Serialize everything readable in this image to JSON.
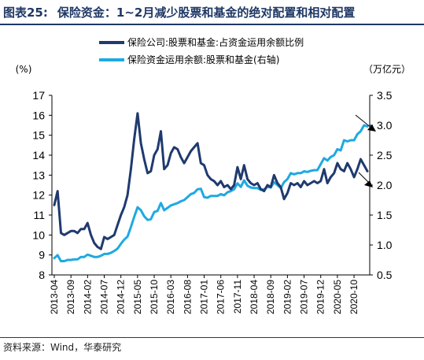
{
  "figure": {
    "label": "图表25:",
    "title": "保险资金：1~2月减少股票和基金的绝对配置和相对配置",
    "source": "资料来源：Wind，华泰研究"
  },
  "chart_data": {
    "type": "line",
    "left_axis": {
      "unit": "(%)",
      "min": 8,
      "max": 17,
      "ticks": [
        8,
        9,
        10,
        11,
        12,
        13,
        14,
        15,
        16,
        17
      ]
    },
    "right_axis": {
      "unit": "（万亿元）",
      "min": 0.5,
      "max": 3.5,
      "ticks": [
        "0.5",
        "1.0",
        "1.5",
        "2.0",
        "2.5",
        "3.0",
        "3.5"
      ]
    },
    "x_tick_labels": [
      "2013-04",
      "2013-09",
      "2014-02",
      "2014-07",
      "2014-12",
      "2015-05",
      "2015-10",
      "2016-03",
      "2016-08",
      "2017-01",
      "2017-06",
      "2017-11",
      "2018-04",
      "2018-09",
      "2019-02",
      "2019-07",
      "2019-12",
      "2020-05",
      "2020-10"
    ],
    "x_range": [
      "2013-04",
      "2021-02"
    ],
    "legend_position": "top-center",
    "series": [
      {
        "name": "保险公司:股票和基金:占资金运用余额比例",
        "axis": "left",
        "color": "#1f3a6e",
        "points": [
          [
            "2013-04",
            11.5
          ],
          [
            "2013-05",
            12.2
          ],
          [
            "2013-06",
            10.1
          ],
          [
            "2013-07",
            10.0
          ],
          [
            "2013-08",
            10.1
          ],
          [
            "2013-09",
            10.2
          ],
          [
            "2013-10",
            10.2
          ],
          [
            "2013-11",
            10.1
          ],
          [
            "2013-12",
            10.3
          ],
          [
            "2014-01",
            10.3
          ],
          [
            "2014-02",
            10.6
          ],
          [
            "2014-03",
            10.0
          ],
          [
            "2014-04",
            9.6
          ],
          [
            "2014-05",
            9.4
          ],
          [
            "2014-06",
            9.3
          ],
          [
            "2014-07",
            9.9
          ],
          [
            "2014-08",
            9.8
          ],
          [
            "2014-09",
            9.9
          ],
          [
            "2014-10",
            10.0
          ],
          [
            "2014-11",
            10.5
          ],
          [
            "2014-12",
            11.0
          ],
          [
            "2015-01",
            11.4
          ],
          [
            "2015-02",
            12.0
          ],
          [
            "2015-03",
            13.3
          ],
          [
            "2015-04",
            14.8
          ],
          [
            "2015-05",
            16.1
          ],
          [
            "2015-06",
            14.6
          ],
          [
            "2015-07",
            13.8
          ],
          [
            "2015-08",
            13.1
          ],
          [
            "2015-09",
            13.2
          ],
          [
            "2015-10",
            14.0
          ],
          [
            "2015-11",
            14.3
          ],
          [
            "2015-12",
            15.2
          ],
          [
            "2016-01",
            13.3
          ],
          [
            "2016-02",
            13.5
          ],
          [
            "2016-03",
            14.1
          ],
          [
            "2016-04",
            14.4
          ],
          [
            "2016-05",
            14.3
          ],
          [
            "2016-06",
            13.9
          ],
          [
            "2016-07",
            13.6
          ],
          [
            "2016-08",
            13.9
          ],
          [
            "2016-09",
            14.2
          ],
          [
            "2016-10",
            14.4
          ],
          [
            "2016-11",
            14.6
          ],
          [
            "2016-12",
            13.6
          ],
          [
            "2017-01",
            13.5
          ],
          [
            "2017-02",
            13.0
          ],
          [
            "2017-03",
            12.8
          ],
          [
            "2017-04",
            12.7
          ],
          [
            "2017-05",
            12.5
          ],
          [
            "2017-06",
            12.7
          ],
          [
            "2017-07",
            12.4
          ],
          [
            "2017-08",
            12.5
          ],
          [
            "2017-09",
            12.3
          ],
          [
            "2017-10",
            12.5
          ],
          [
            "2017-11",
            13.4
          ],
          [
            "2017-12",
            12.8
          ],
          [
            "2018-01",
            13.5
          ],
          [
            "2018-02",
            12.8
          ],
          [
            "2018-03",
            12.6
          ],
          [
            "2018-04",
            12.5
          ],
          [
            "2018-05",
            12.6
          ],
          [
            "2018-06",
            12.3
          ],
          [
            "2018-07",
            12.2
          ],
          [
            "2018-08",
            12.5
          ],
          [
            "2018-09",
            12.4
          ],
          [
            "2018-10",
            13.0
          ],
          [
            "2018-11",
            12.6
          ],
          [
            "2018-12",
            12.4
          ],
          [
            "2019-01",
            11.8
          ],
          [
            "2019-02",
            12.1
          ],
          [
            "2019-03",
            12.6
          ],
          [
            "2019-04",
            12.5
          ],
          [
            "2019-05",
            12.6
          ],
          [
            "2019-06",
            12.4
          ],
          [
            "2019-07",
            12.7
          ],
          [
            "2019-08",
            12.5
          ],
          [
            "2019-09",
            12.6
          ],
          [
            "2019-10",
            12.7
          ],
          [
            "2019-11",
            12.6
          ],
          [
            "2019-12",
            12.7
          ],
          [
            "2020-01",
            13.3
          ],
          [
            "2020-02",
            12.6
          ],
          [
            "2020-03",
            12.9
          ],
          [
            "2020-04",
            13.1
          ],
          [
            "2020-05",
            13.6
          ],
          [
            "2020-06",
            13.3
          ],
          [
            "2020-07",
            13.2
          ],
          [
            "2020-08",
            13.6
          ],
          [
            "2020-09",
            13.3
          ],
          [
            "2020-10",
            12.9
          ],
          [
            "2020-11",
            13.3
          ],
          [
            "2020-12",
            13.8
          ],
          [
            "2021-01",
            13.5
          ],
          [
            "2021-02",
            13.2
          ]
        ]
      },
      {
        "name": "保险资金运用余额:股票和基金(右轴)",
        "axis": "right",
        "color": "#1fa9e1",
        "points": [
          [
            "2013-04",
            0.78
          ],
          [
            "2013-05",
            0.83
          ],
          [
            "2013-06",
            0.73
          ],
          [
            "2013-07",
            0.73
          ],
          [
            "2013-08",
            0.75
          ],
          [
            "2013-09",
            0.75
          ],
          [
            "2013-10",
            0.76
          ],
          [
            "2013-11",
            0.76
          ],
          [
            "2013-12",
            0.8
          ],
          [
            "2014-01",
            0.8
          ],
          [
            "2014-02",
            0.84
          ],
          [
            "2014-03",
            0.82
          ],
          [
            "2014-04",
            0.8
          ],
          [
            "2014-05",
            0.8
          ],
          [
            "2014-06",
            0.82
          ],
          [
            "2014-07",
            0.85
          ],
          [
            "2014-08",
            0.85
          ],
          [
            "2014-09",
            0.87
          ],
          [
            "2014-10",
            0.9
          ],
          [
            "2014-11",
            0.94
          ],
          [
            "2014-12",
            1.02
          ],
          [
            "2015-01",
            1.09
          ],
          [
            "2015-02",
            1.14
          ],
          [
            "2015-03",
            1.3
          ],
          [
            "2015-04",
            1.47
          ],
          [
            "2015-05",
            1.63
          ],
          [
            "2015-06",
            1.58
          ],
          [
            "2015-07",
            1.48
          ],
          [
            "2015-08",
            1.42
          ],
          [
            "2015-09",
            1.43
          ],
          [
            "2015-10",
            1.55
          ],
          [
            "2015-11",
            1.57
          ],
          [
            "2015-12",
            1.7
          ],
          [
            "2016-01",
            1.58
          ],
          [
            "2016-02",
            1.62
          ],
          [
            "2016-03",
            1.66
          ],
          [
            "2016-04",
            1.68
          ],
          [
            "2016-05",
            1.7
          ],
          [
            "2016-06",
            1.73
          ],
          [
            "2016-07",
            1.75
          ],
          [
            "2016-08",
            1.8
          ],
          [
            "2016-09",
            1.85
          ],
          [
            "2016-10",
            1.87
          ],
          [
            "2016-11",
            1.93
          ],
          [
            "2016-12",
            1.94
          ],
          [
            "2017-01",
            1.8
          ],
          [
            "2017-02",
            1.79
          ],
          [
            "2017-03",
            1.82
          ],
          [
            "2017-04",
            1.82
          ],
          [
            "2017-05",
            1.82
          ],
          [
            "2017-06",
            1.85
          ],
          [
            "2017-07",
            1.83
          ],
          [
            "2017-08",
            1.88
          ],
          [
            "2017-09",
            1.9
          ],
          [
            "2017-10",
            1.93
          ],
          [
            "2017-11",
            2.03
          ],
          [
            "2017-12",
            1.97
          ],
          [
            "2018-01",
            2.08
          ],
          [
            "2018-02",
            1.99
          ],
          [
            "2018-03",
            1.96
          ],
          [
            "2018-04",
            1.95
          ],
          [
            "2018-05",
            1.95
          ],
          [
            "2018-06",
            1.92
          ],
          [
            "2018-07",
            1.93
          ],
          [
            "2018-08",
            1.97
          ],
          [
            "2018-09",
            1.96
          ],
          [
            "2018-10",
            2.05
          ],
          [
            "2018-11",
            2.0
          ],
          [
            "2018-12",
            1.95
          ],
          [
            "2019-01",
            2.05
          ],
          [
            "2019-02",
            2.1
          ],
          [
            "2019-03",
            2.2
          ],
          [
            "2019-04",
            2.18
          ],
          [
            "2019-05",
            2.2
          ],
          [
            "2019-06",
            2.2
          ],
          [
            "2019-07",
            2.23
          ],
          [
            "2019-08",
            2.22
          ],
          [
            "2019-09",
            2.24
          ],
          [
            "2019-10",
            2.25
          ],
          [
            "2019-11",
            2.25
          ],
          [
            "2019-12",
            2.35
          ],
          [
            "2020-01",
            2.45
          ],
          [
            "2020-02",
            2.41
          ],
          [
            "2020-03",
            2.47
          ],
          [
            "2020-04",
            2.5
          ],
          [
            "2020-05",
            2.6
          ],
          [
            "2020-06",
            2.58
          ],
          [
            "2020-07",
            2.75
          ],
          [
            "2020-08",
            2.73
          ],
          [
            "2020-09",
            2.75
          ],
          [
            "2020-10",
            2.75
          ],
          [
            "2020-11",
            2.85
          ],
          [
            "2020-12",
            2.9
          ],
          [
            "2021-01",
            3.0
          ],
          [
            "2021-02",
            2.98
          ]
        ]
      }
    ]
  }
}
